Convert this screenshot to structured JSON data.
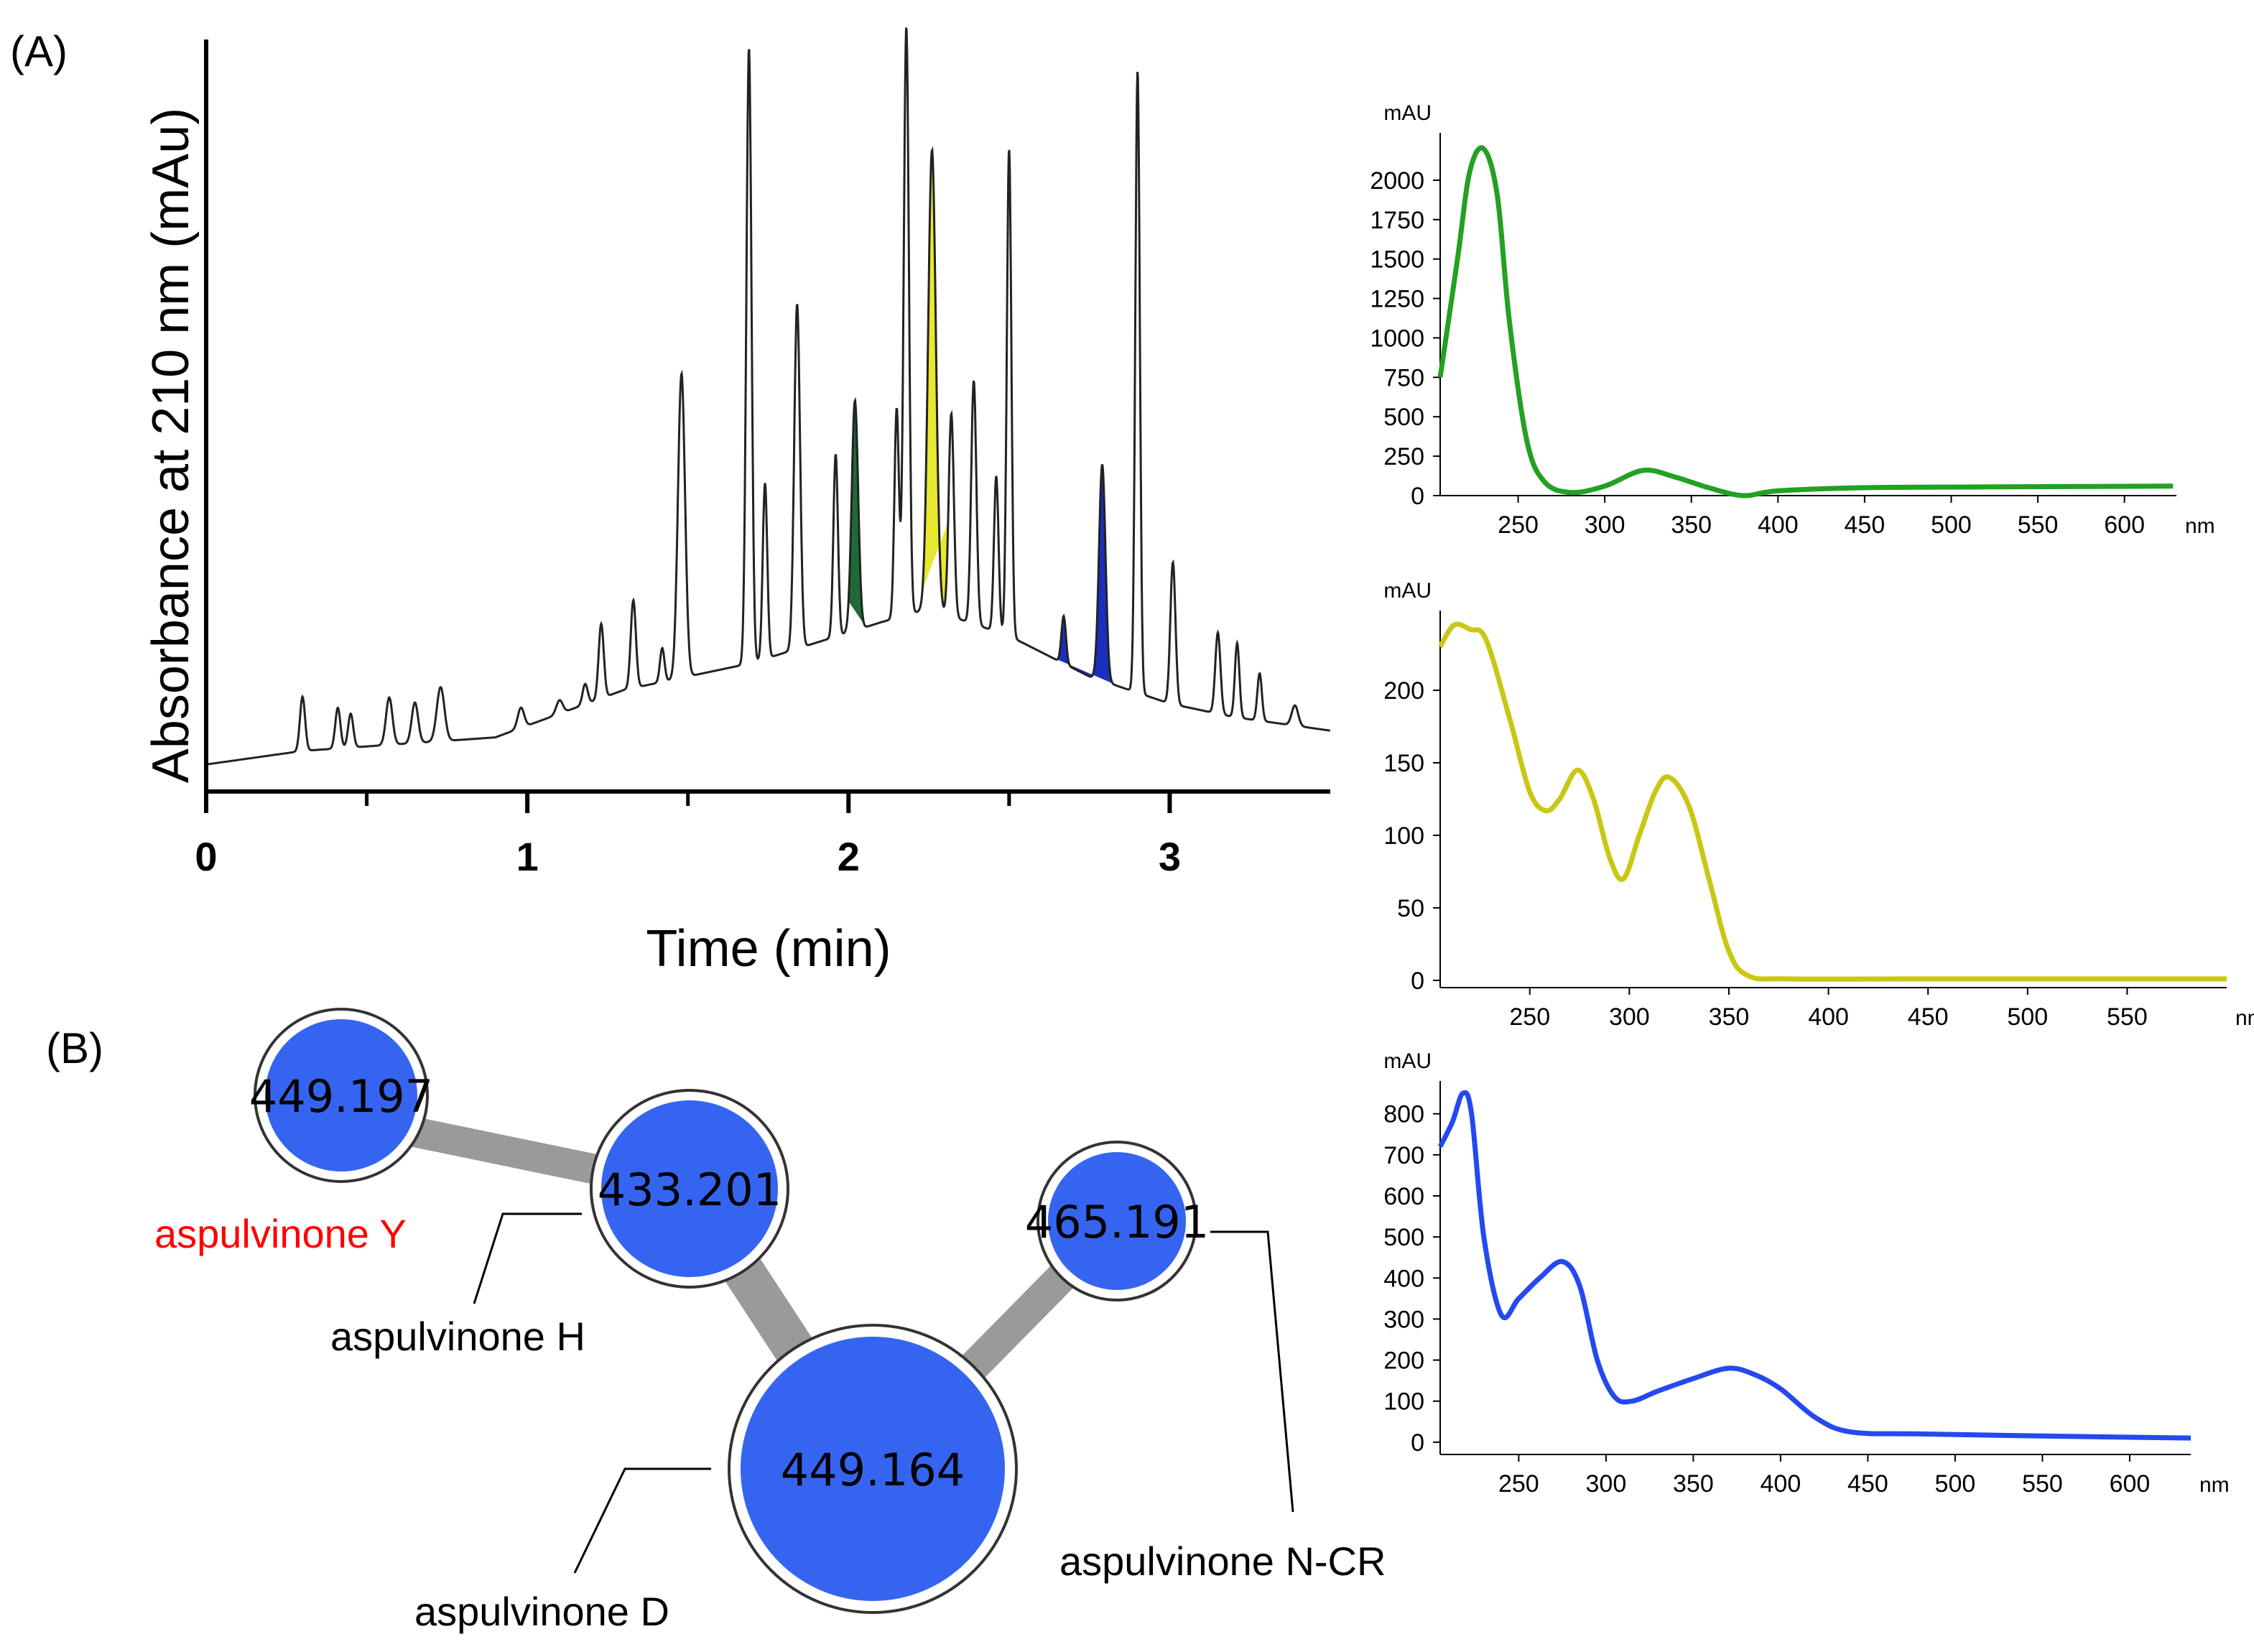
{
  "panels": {
    "a_label": "(A)",
    "b_label": "(B)"
  },
  "chart_data": [
    {
      "type": "line",
      "id": "chromatogram",
      "title": "",
      "xlabel": "Time (min)",
      "ylabel": "Absorbance at 210 nm (mAu)",
      "xlim": [
        0,
        3.5
      ],
      "x_ticks": [
        "0",
        "1",
        "2",
        "3"
      ],
      "x_tick_values": [
        0,
        1,
        2,
        3
      ],
      "x_minor_ticks": [
        0.5,
        1.5,
        2.5
      ],
      "baseline": 0.04,
      "drift": [
        [
          0,
          0
        ],
        [
          0.3,
          0.02
        ],
        [
          0.9,
          0.04
        ],
        [
          1.3,
          0.11
        ],
        [
          1.7,
          0.15
        ],
        [
          2.1,
          0.21
        ],
        [
          2.25,
          0.23
        ],
        [
          2.5,
          0.19
        ],
        [
          2.75,
          0.13
        ],
        [
          3.0,
          0.09
        ],
        [
          3.2,
          0.07
        ],
        [
          3.5,
          0.05
        ]
      ],
      "peaks": [
        {
          "rt": 0.3,
          "height": 0.08,
          "width": 0.008
        },
        {
          "rt": 0.41,
          "height": 0.06,
          "width": 0.008
        },
        {
          "rt": 0.45,
          "height": 0.05,
          "width": 0.008
        },
        {
          "rt": 0.57,
          "height": 0.07,
          "width": 0.01
        },
        {
          "rt": 0.65,
          "height": 0.06,
          "width": 0.01
        },
        {
          "rt": 0.73,
          "height": 0.08,
          "width": 0.012
        },
        {
          "rt": 0.98,
          "height": 0.03,
          "width": 0.01
        },
        {
          "rt": 1.1,
          "height": 0.02,
          "width": 0.01
        },
        {
          "rt": 1.18,
          "height": 0.03,
          "width": 0.008
        },
        {
          "rt": 1.23,
          "height": 0.11,
          "width": 0.008
        },
        {
          "rt": 1.33,
          "height": 0.13,
          "width": 0.008
        },
        {
          "rt": 1.42,
          "height": 0.05,
          "width": 0.007
        },
        {
          "rt": 1.48,
          "height": 0.45,
          "width": 0.011
        },
        {
          "rt": 1.69,
          "height": 0.91,
          "width": 0.008
        },
        {
          "rt": 1.74,
          "height": 0.26,
          "width": 0.007
        },
        {
          "rt": 1.84,
          "height": 0.51,
          "width": 0.009
        },
        {
          "rt": 1.96,
          "height": 0.27,
          "width": 0.007
        },
        {
          "rt": 2.02,
          "height": 0.34,
          "width": 0.01
        },
        {
          "rt": 2.15,
          "height": 0.31,
          "width": 0.007
        },
        {
          "rt": 2.18,
          "height": 0.87,
          "width": 0.008
        },
        {
          "rt": 2.26,
          "height": 0.68,
          "width": 0.012
        },
        {
          "rt": 2.32,
          "height": 0.3,
          "width": 0.008
        },
        {
          "rt": 2.39,
          "height": 0.36,
          "width": 0.008
        },
        {
          "rt": 2.46,
          "height": 0.23,
          "width": 0.007
        },
        {
          "rt": 2.5,
          "height": 0.72,
          "width": 0.007
        },
        {
          "rt": 2.67,
          "height": 0.07,
          "width": 0.007
        },
        {
          "rt": 2.79,
          "height": 0.32,
          "width": 0.01
        },
        {
          "rt": 2.9,
          "height": 0.92,
          "width": 0.007
        },
        {
          "rt": 3.01,
          "height": 0.21,
          "width": 0.008
        },
        {
          "rt": 3.15,
          "height": 0.12,
          "width": 0.008
        },
        {
          "rt": 3.21,
          "height": 0.11,
          "width": 0.007
        },
        {
          "rt": 3.28,
          "height": 0.07,
          "width": 0.007
        },
        {
          "rt": 3.39,
          "height": 0.03,
          "width": 0.01
        }
      ],
      "highlights": [
        {
          "name": "green",
          "color": "#1e6b35",
          "from": 2.0,
          "to": 2.05
        },
        {
          "name": "yellow",
          "color": "#e8e830",
          "from": 2.23,
          "to": 2.31
        },
        {
          "name": "blue",
          "color": "#1a2fbf",
          "from": 2.65,
          "to": 2.85
        }
      ]
    },
    {
      "type": "line",
      "id": "uv-green",
      "color": "#22a122",
      "y_unit": "mAU",
      "x_unit": "nm",
      "xlim": [
        205,
        630
      ],
      "ylim": [
        0,
        2300
      ],
      "y_ticks": [
        "2000",
        "1750",
        "1500",
        "1250",
        "1000",
        "750",
        "500",
        "250",
        "0"
      ],
      "y_tick_values": [
        2000,
        1750,
        1500,
        1250,
        1000,
        750,
        500,
        250,
        0
      ],
      "x_ticks": [
        "250",
        "300",
        "350",
        "400",
        "450",
        "500",
        "550",
        "600"
      ],
      "x_tick_values": [
        250,
        300,
        350,
        400,
        450,
        500,
        550,
        600
      ],
      "points": [
        [
          205,
          750
        ],
        [
          215,
          1500
        ],
        [
          222,
          2050
        ],
        [
          230,
          2200
        ],
        [
          238,
          1900
        ],
        [
          245,
          1100
        ],
        [
          255,
          350
        ],
        [
          265,
          90
        ],
        [
          280,
          20
        ],
        [
          300,
          60
        ],
        [
          322,
          160
        ],
        [
          340,
          120
        ],
        [
          360,
          50
        ],
        [
          380,
          0
        ],
        [
          400,
          30
        ],
        [
          450,
          50
        ],
        [
          520,
          55
        ],
        [
          628,
          60
        ]
      ]
    },
    {
      "type": "line",
      "id": "uv-yellow",
      "color": "#c8c814",
      "y_unit": "mAU",
      "x_unit": "nm",
      "xlim": [
        205,
        600
      ],
      "ylim": [
        -5,
        255
      ],
      "y_ticks": [
        "200",
        "150",
        "100",
        "50",
        "0"
      ],
      "y_tick_values": [
        200,
        150,
        100,
        50,
        0
      ],
      "x_ticks": [
        "250",
        "300",
        "350",
        "400",
        "450",
        "500",
        "550"
      ],
      "x_tick_values": [
        250,
        300,
        350,
        400,
        450,
        500,
        550
      ],
      "points": [
        [
          205,
          230
        ],
        [
          212,
          245
        ],
        [
          220,
          242
        ],
        [
          228,
          235
        ],
        [
          240,
          180
        ],
        [
          250,
          130
        ],
        [
          258,
          117
        ],
        [
          265,
          125
        ],
        [
          274,
          145
        ],
        [
          282,
          125
        ],
        [
          290,
          85
        ],
        [
          297,
          70
        ],
        [
          305,
          100
        ],
        [
          313,
          130
        ],
        [
          320,
          140
        ],
        [
          330,
          120
        ],
        [
          340,
          70
        ],
        [
          350,
          20
        ],
        [
          360,
          3
        ],
        [
          380,
          1
        ],
        [
          450,
          1
        ],
        [
          600,
          1
        ]
      ]
    },
    {
      "type": "line",
      "id": "uv-blue",
      "color": "#2449f0",
      "y_unit": "mAU",
      "x_unit": "nm",
      "xlim": [
        205,
        635
      ],
      "ylim": [
        -30,
        880
      ],
      "y_ticks": [
        "800",
        "700",
        "600",
        "500",
        "400",
        "300",
        "200",
        "100",
        "0"
      ],
      "y_tick_values": [
        800,
        700,
        600,
        500,
        400,
        300,
        200,
        100,
        0
      ],
      "x_ticks": [
        "250",
        "300",
        "350",
        "400",
        "450",
        "500",
        "550",
        "600"
      ],
      "x_tick_values": [
        250,
        300,
        350,
        400,
        450,
        500,
        550,
        600
      ],
      "points": [
        [
          205,
          720
        ],
        [
          212,
          780
        ],
        [
          218,
          850
        ],
        [
          223,
          800
        ],
        [
          230,
          500
        ],
        [
          240,
          310
        ],
        [
          250,
          350
        ],
        [
          262,
          400
        ],
        [
          275,
          440
        ],
        [
          285,
          380
        ],
        [
          295,
          200
        ],
        [
          305,
          110
        ],
        [
          315,
          100
        ],
        [
          330,
          125
        ],
        [
          350,
          155
        ],
        [
          370,
          180
        ],
        [
          385,
          165
        ],
        [
          400,
          130
        ],
        [
          420,
          60
        ],
        [
          440,
          25
        ],
        [
          480,
          20
        ],
        [
          550,
          15
        ],
        [
          635,
          10
        ]
      ]
    }
  ],
  "network": {
    "nodes": [
      {
        "id": "n449197",
        "label": "449.197"
      },
      {
        "id": "n433201",
        "label": "433.201"
      },
      {
        "id": "n465191",
        "label": "465.191"
      },
      {
        "id": "n449164",
        "label": "449.164"
      }
    ],
    "compounds": [
      {
        "name": "aspulvinone Y",
        "color": "#ff0000"
      },
      {
        "name": "aspulvinone H",
        "color": "#000000"
      },
      {
        "name": "aspulvinone D",
        "color": "#000000"
      },
      {
        "name": "aspulvinone N-CR",
        "color": "#000000"
      }
    ]
  }
}
